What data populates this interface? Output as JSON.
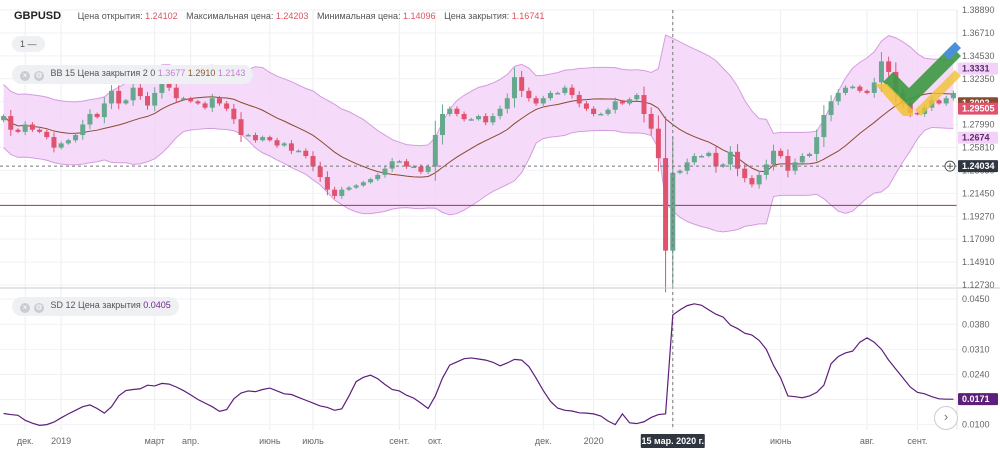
{
  "header": {
    "symbol": "GBPUSD",
    "open_label": "Цена открытия:",
    "open_value": "1.24102",
    "high_label": "Максимальная цена:",
    "high_value": "1.24203",
    "low_label": "Минимальная цена:",
    "low_value": "1.14096",
    "close_label": "Цена закрытия:",
    "close_value": "1.16741"
  },
  "interval": {
    "label": "1",
    "dash": "—"
  },
  "bb": {
    "name": "BB",
    "params": "15 Цена закрытия 2 0",
    "upper": "1.3677",
    "middle": "1.2910",
    "lower": "1.2143"
  },
  "sd": {
    "name": "SD",
    "params": "12 Цена закрытия",
    "value": "0.0405"
  },
  "colors": {
    "up": "#66a88e",
    "down": "#e0526e",
    "band_fill": "#f3d2f7",
    "band_line": "#d59be0",
    "mid_line": "#8a4a2e",
    "sd_line": "#5c1f7a",
    "hline": "#a3334a"
  },
  "chart_data": [
    {
      "type": "candlestick",
      "title": "GBPUSD",
      "x_labels": [
        "дек.",
        "2019",
        "март",
        "апр.",
        "июнь",
        "июль",
        "сент.",
        "окт.",
        "дек.",
        "2020",
        "15 мар. 2020 г.",
        "июнь",
        "авг.",
        "сент."
      ],
      "x_label_weeks": [
        3,
        8,
        21,
        26,
        37,
        43,
        55,
        60,
        75,
        82,
        93,
        108,
        120,
        127
      ],
      "crosshair_week": 93,
      "y_ticks": [
        1.3889,
        1.3671,
        1.3453,
        1.3235,
        1.3017,
        1.2799,
        1.2581,
        1.2363,
        1.2145,
        1.1927,
        1.1709,
        1.1491,
        1.1273
      ],
      "ylim": [
        1.1273,
        1.3889
      ],
      "price_badges": [
        {
          "value": "1.3331",
          "role": "bb-upper"
        },
        {
          "value": "1.3002",
          "role": "last-price"
        },
        {
          "value": "1.29505",
          "role": "close"
        },
        {
          "value": "1.2674",
          "role": "bb-lower"
        },
        {
          "value": "1.24034",
          "role": "crosshair"
        }
      ],
      "crosshair_price": 1.24034,
      "horizontal_line": 1.2031,
      "closes": [
        1.288,
        1.275,
        1.273,
        1.28,
        1.275,
        1.273,
        1.268,
        1.258,
        1.262,
        1.265,
        1.27,
        1.28,
        1.29,
        1.287,
        1.3,
        1.312,
        1.3,
        1.303,
        1.315,
        1.307,
        1.298,
        1.31,
        1.322,
        1.315,
        1.305,
        1.305,
        1.302,
        1.3,
        1.296,
        1.305,
        1.3,
        1.295,
        1.285,
        1.27,
        1.27,
        1.265,
        1.268,
        1.265,
        1.26,
        1.262,
        1.255,
        1.255,
        1.25,
        1.24,
        1.23,
        1.218,
        1.212,
        1.218,
        1.22,
        1.222,
        1.225,
        1.228,
        1.232,
        1.238,
        1.245,
        1.245,
        1.24,
        1.24,
        1.235,
        1.24,
        1.27,
        1.29,
        1.295,
        1.29,
        1.285,
        1.285,
        1.288,
        1.282,
        1.288,
        1.295,
        1.305,
        1.325,
        1.312,
        1.305,
        1.3,
        1.305,
        1.31,
        1.31,
        1.315,
        1.308,
        1.3,
        1.295,
        1.29,
        1.29,
        1.294,
        1.302,
        1.3,
        1.304,
        1.308,
        1.29,
        1.276,
        1.248,
        1.16,
        1.234,
        1.236,
        1.244,
        1.25,
        1.25,
        1.253,
        1.24,
        1.242,
        1.254,
        1.238,
        1.229,
        1.223,
        1.232,
        1.242,
        1.255,
        1.25,
        1.236,
        1.244,
        1.25,
        1.252,
        1.268,
        1.289,
        1.302,
        1.31,
        1.315,
        1.316,
        1.312,
        1.31,
        1.32,
        1.34,
        1.33,
        1.31,
        1.3,
        1.291,
        1.29,
        1.296,
        1.303,
        1.3,
        1.305,
        1.31
      ],
      "indicators": [
        {
          "name": "BB",
          "params": "15 2 0",
          "upper": 1.3331,
          "lower": 1.2674
        },
        {
          "name": "SD",
          "params": "12"
        }
      ]
    },
    {
      "type": "line",
      "title": "SD",
      "y_ticks": [
        0.045,
        0.038,
        0.031,
        0.024,
        0.017,
        0.01
      ],
      "ylim": [
        0.0085,
        0.047
      ],
      "current": "0.0171",
      "values": [
        0.0131,
        0.0128,
        0.0126,
        0.0112,
        0.0104,
        0.0098,
        0.01,
        0.0107,
        0.0119,
        0.013,
        0.014,
        0.015,
        0.0155,
        0.0145,
        0.0132,
        0.015,
        0.018,
        0.0195,
        0.0198,
        0.02,
        0.021,
        0.0208,
        0.0215,
        0.0213,
        0.0205,
        0.0195,
        0.0183,
        0.017,
        0.016,
        0.015,
        0.0137,
        0.0142,
        0.0172,
        0.0188,
        0.0194,
        0.0192,
        0.0198,
        0.0202,
        0.0194,
        0.0186,
        0.0184,
        0.0176,
        0.0168,
        0.016,
        0.0152,
        0.0148,
        0.014,
        0.0144,
        0.018,
        0.022,
        0.0232,
        0.0238,
        0.0228,
        0.0212,
        0.0198,
        0.0194,
        0.0182,
        0.0174,
        0.016,
        0.0145,
        0.018,
        0.023,
        0.0266,
        0.0275,
        0.0284,
        0.0286,
        0.0283,
        0.028,
        0.0274,
        0.0264,
        0.0272,
        0.0282,
        0.028,
        0.0262,
        0.023,
        0.0195,
        0.0165,
        0.0146,
        0.014,
        0.0138,
        0.0133,
        0.0132,
        0.013,
        0.0124,
        0.011,
        0.01,
        0.013,
        0.0105,
        0.0103,
        0.0108,
        0.012,
        0.0128,
        0.013,
        0.0406,
        0.042,
        0.0432,
        0.0437,
        0.0433,
        0.042,
        0.0408,
        0.04,
        0.0378,
        0.0368,
        0.0355,
        0.035,
        0.0335,
        0.031,
        0.0265,
        0.023,
        0.018,
        0.0178,
        0.0175,
        0.018,
        0.019,
        0.021,
        0.027,
        0.029,
        0.03,
        0.0305,
        0.033,
        0.0342,
        0.033,
        0.031,
        0.028,
        0.0255,
        0.023,
        0.0205,
        0.019,
        0.0186,
        0.0178,
        0.0172,
        0.0171,
        0.0171
      ]
    }
  ]
}
